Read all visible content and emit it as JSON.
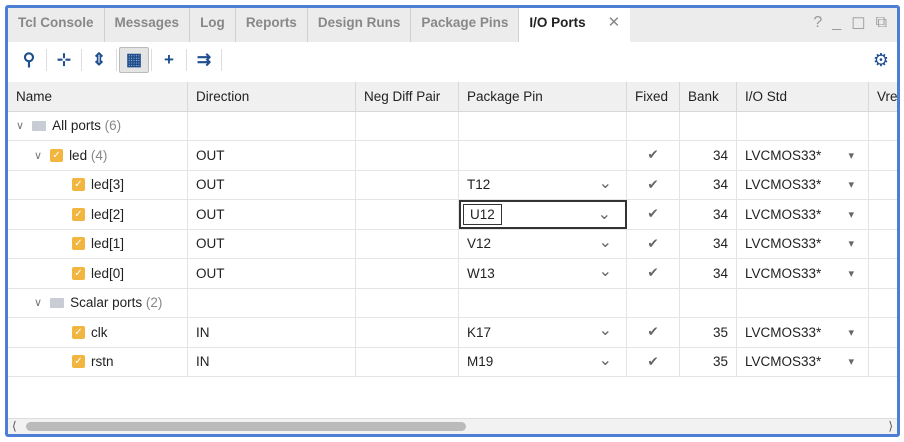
{
  "tabs": [
    {
      "label": "Tcl Console"
    },
    {
      "label": "Messages"
    },
    {
      "label": "Log"
    },
    {
      "label": "Reports"
    },
    {
      "label": "Design Runs"
    },
    {
      "label": "Package Pins"
    },
    {
      "label": "I/O Ports",
      "active": true
    }
  ],
  "window_controls": {
    "help": "?",
    "minimize": "_",
    "maximize": "☐",
    "float": "⧉"
  },
  "toolbar": [
    "search-icon",
    "collapse-all-icon",
    "expand-all-icon",
    "group-by-interface-icon",
    "add-icon",
    "auto-assign-icon"
  ],
  "columns": [
    "Name",
    "Direction",
    "Neg Diff Pair",
    "Package Pin",
    "Fixed",
    "Bank",
    "I/O Std",
    "Vref"
  ],
  "groups": {
    "all": {
      "name": "All ports",
      "count": "(6)"
    },
    "led": {
      "name": "led",
      "count": "(4)",
      "direction": "OUT",
      "fixed": "✔",
      "bank": "34",
      "iostd": "LVCMOS33*"
    },
    "scalar": {
      "name": "Scalar ports",
      "count": "(2)"
    }
  },
  "rows": [
    {
      "name": "led[3]",
      "direction": "OUT",
      "pin": "T12",
      "fixed": "✔",
      "bank": "34",
      "iostd": "LVCMOS33*"
    },
    {
      "name": "led[2]",
      "direction": "OUT",
      "pin": "U12",
      "fixed": "✔",
      "bank": "34",
      "iostd": "LVCMOS33*",
      "editing": true
    },
    {
      "name": "led[1]",
      "direction": "OUT",
      "pin": "V12",
      "fixed": "✔",
      "bank": "34",
      "iostd": "LVCMOS33*"
    },
    {
      "name": "led[0]",
      "direction": "OUT",
      "pin": "W13",
      "fixed": "✔",
      "bank": "34",
      "iostd": "LVCMOS33*"
    },
    {
      "name": "clk",
      "direction": "IN",
      "pin": "K17",
      "fixed": "✔",
      "bank": "35",
      "iostd": "LVCMOS33*"
    },
    {
      "name": "rstn",
      "direction": "IN",
      "pin": "M19",
      "fixed": "✔",
      "bank": "35",
      "iostd": "LVCMOS33*"
    }
  ],
  "colors": {
    "frame": "#4a7fd4",
    "icon": "#1f4f8f",
    "port": "#f2b640"
  }
}
